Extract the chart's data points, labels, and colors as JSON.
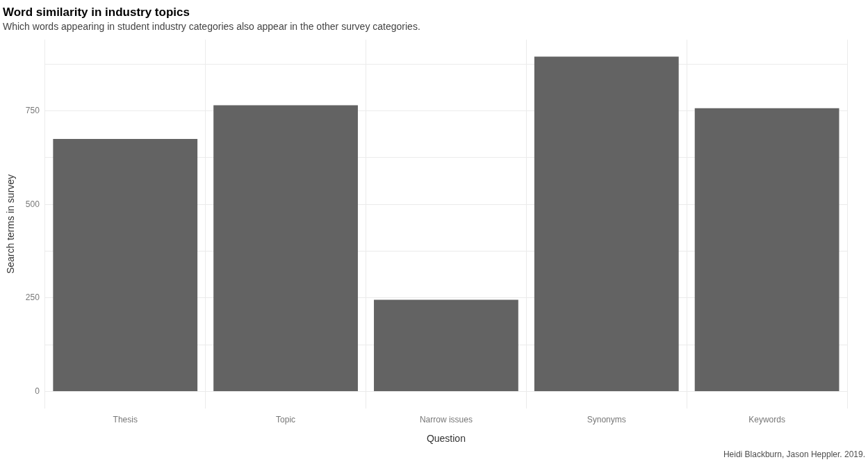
{
  "chart_data": {
    "type": "bar",
    "title": "Word similarity in industry topics",
    "subtitle": "Which words appearing in student industry categories also appear in the other survey categories.",
    "xlabel": "Question",
    "ylabel": "Search terms in survey",
    "annotations": [
      "Heidi Blackburn, Jason Heppler. 2019."
    ],
    "categories": [
      "Thesis",
      "Topic",
      "Narrow issues",
      "Synonyms",
      "Keywords"
    ],
    "values": [
      675,
      765,
      245,
      895,
      757
    ],
    "color": "#636363",
    "ylim": [
      -45,
      940
    ],
    "yticks": [
      0,
      {
        "value": 125,
        "label": null
      },
      250,
      {
        "value": 375,
        "label": null
      },
      500,
      {
        "value": 625,
        "label": null
      },
      750,
      {
        "value": 875,
        "label": null
      }
    ],
    "grid": true,
    "legend": false
  }
}
